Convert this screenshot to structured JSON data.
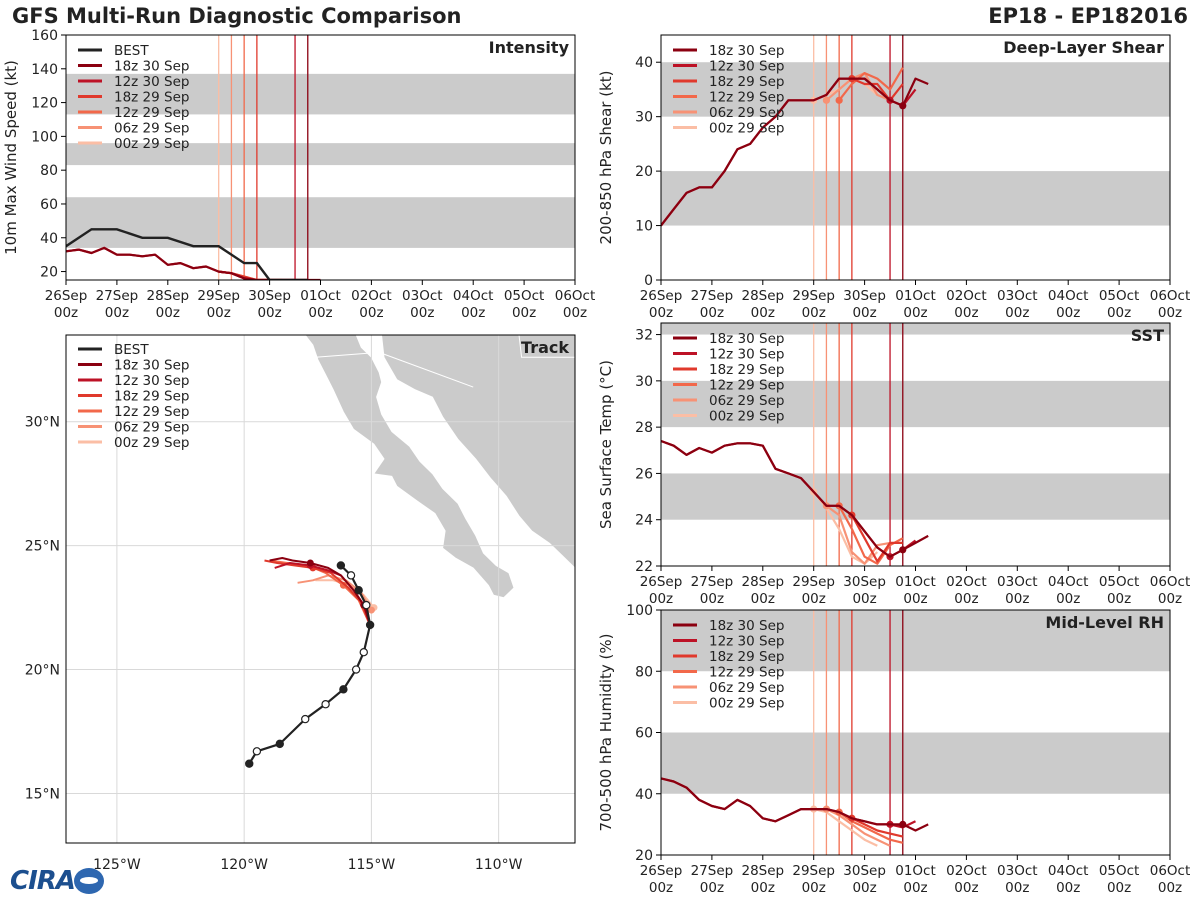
{
  "header": {
    "title": "GFS Multi-Run Diagnostic Comparison",
    "storm": "EP18 - EP182016"
  },
  "logo_text": "CIRA",
  "colors": {
    "best": "#222222",
    "runs": [
      "#8b0010",
      "#bd1226",
      "#e0392c",
      "#f2684a",
      "#f79275",
      "#fbbea5"
    ],
    "band": "#cbcbcb",
    "grid": "#d9d9d9"
  },
  "time_axis": {
    "range": [
      0,
      240
    ],
    "ticks": [
      {
        "t": 0,
        "top": "26Sep",
        "bot": "00z"
      },
      {
        "t": 24,
        "top": "27Sep",
        "bot": "00z"
      },
      {
        "t": 48,
        "top": "28Sep",
        "bot": "00z"
      },
      {
        "t": 72,
        "top": "29Sep",
        "bot": "00z"
      },
      {
        "t": 96,
        "top": "30Sep",
        "bot": "00z"
      },
      {
        "t": 120,
        "top": "01Oct",
        "bot": "00z"
      },
      {
        "t": 144,
        "top": "02Oct",
        "bot": "00z"
      },
      {
        "t": 168,
        "top": "03Oct",
        "bot": "00z"
      },
      {
        "t": 192,
        "top": "04Oct",
        "bot": "00z"
      },
      {
        "t": 216,
        "top": "05Oct",
        "bot": "00z"
      },
      {
        "t": 240,
        "top": "06Oct",
        "bot": "00z"
      }
    ]
  },
  "runs": [
    {
      "label": "18z 30 Sep",
      "t": 114
    },
    {
      "label": "12z 30 Sep",
      "t": 108
    },
    {
      "label": "18z 29 Sep",
      "t": 90
    },
    {
      "label": "12z 29 Sep",
      "t": 84
    },
    {
      "label": "06z 29 Sep",
      "t": 78
    },
    {
      "label": "00z 29 Sep",
      "t": 72
    }
  ],
  "best_label": "BEST",
  "chart_data": [
    {
      "id": "intensity",
      "type": "line",
      "title": "Intensity",
      "ylabel": "10m Max Wind Speed (kt)",
      "ylim": [
        15,
        160
      ],
      "yticks": [
        20,
        40,
        60,
        80,
        100,
        120,
        140,
        160
      ],
      "bands": [
        [
          34,
          64
        ],
        [
          83,
          96
        ],
        [
          113,
          137
        ]
      ],
      "legend_best": true,
      "best": {
        "t": [
          0,
          12,
          24,
          36,
          48,
          60,
          72,
          84,
          90,
          96,
          102,
          108,
          114
        ],
        "y": [
          35,
          45,
          45,
          40,
          40,
          35,
          35,
          25,
          25,
          15,
          15,
          15,
          15
        ]
      },
      "series": [
        {
          "t": [
            0,
            6,
            12,
            18,
            24,
            30,
            36,
            42,
            48,
            54,
            60,
            66,
            72,
            78,
            84,
            90,
            96,
            102,
            108,
            114,
            120
          ],
          "y": [
            32,
            33,
            31,
            34,
            30,
            30,
            29,
            30,
            24,
            25,
            22,
            23,
            20,
            19,
            16,
            15,
            15,
            15,
            15,
            15,
            15
          ]
        },
        {
          "t": [
            0,
            6,
            12,
            18,
            24,
            30,
            36,
            42,
            48,
            54,
            60,
            66,
            72,
            78,
            84,
            90,
            96,
            102,
            108,
            114
          ],
          "y": [
            32,
            33,
            31,
            34,
            30,
            30,
            29,
            30,
            24,
            25,
            22,
            23,
            20,
            19,
            16,
            15,
            15,
            15,
            15,
            15
          ]
        },
        {
          "t": [
            72,
            78,
            84,
            90,
            96,
            102,
            108
          ],
          "y": [
            20,
            19,
            17,
            15,
            15,
            15,
            15
          ]
        },
        {
          "t": [
            72,
            78,
            84,
            90,
            96,
            102
          ],
          "y": [
            20,
            19,
            16,
            15,
            15,
            15
          ]
        },
        {
          "t": [
            72,
            78,
            84,
            90,
            96
          ],
          "y": [
            20,
            19,
            17,
            15,
            15
          ]
        },
        {
          "t": [
            72,
            78,
            84,
            90,
            96
          ],
          "y": [
            20,
            19,
            17,
            15,
            15
          ]
        }
      ]
    },
    {
      "id": "shear",
      "type": "line",
      "title": "Deep-Layer Shear",
      "ylabel": "200-850 hPa Shear (kt)",
      "ylim": [
        0,
        45
      ],
      "yticks": [
        0,
        10,
        20,
        30,
        40
      ],
      "bands": [
        [
          10,
          20
        ],
        [
          30,
          40
        ]
      ],
      "legend_best": false,
      "series": [
        {
          "t": [
            0,
            6,
            12,
            18,
            24,
            30,
            36,
            42,
            48,
            54,
            60,
            66,
            72,
            78,
            84,
            90,
            96,
            102,
            108,
            114,
            120,
            126,
            132
          ],
          "y": [
            10,
            13,
            16,
            17,
            17,
            20,
            24,
            25,
            28,
            30,
            33,
            33,
            33,
            34,
            37,
            37,
            37,
            35,
            33,
            32,
            37,
            36,
            null
          ]
        },
        {
          "t": [
            0,
            6,
            12,
            18,
            24,
            30,
            36,
            42,
            48,
            54,
            60,
            66,
            72,
            78,
            84,
            90,
            96,
            102,
            108,
            114,
            120,
            126
          ],
          "y": [
            10,
            13,
            16,
            17,
            17,
            20,
            24,
            25,
            28,
            30,
            33,
            33,
            33,
            34,
            37,
            37,
            37,
            35,
            33,
            32,
            35,
            null
          ]
        },
        {
          "t": [
            90,
            96,
            102,
            108,
            114
          ],
          "y": [
            37,
            36,
            36,
            33,
            36
          ]
        },
        {
          "t": [
            84,
            90,
            96,
            102,
            108,
            114
          ],
          "y": [
            33,
            36,
            38,
            37,
            35,
            39
          ]
        },
        {
          "t": [
            78,
            84,
            90,
            96,
            102,
            108
          ],
          "y": [
            33,
            35,
            37,
            38,
            34,
            33
          ]
        },
        {
          "t": [
            72,
            78,
            84,
            90,
            96,
            102
          ],
          "y": [
            33,
            34,
            35,
            37,
            36,
            34
          ]
        }
      ]
    },
    {
      "id": "sst",
      "type": "line",
      "title": "SST",
      "ylabel": "Sea Surface Temp (°C)",
      "ylim": [
        22,
        32.5
      ],
      "yticks": [
        22,
        24,
        26,
        28,
        30,
        32
      ],
      "bands": [
        [
          24,
          26
        ],
        [
          28,
          30
        ],
        [
          32,
          34
        ]
      ],
      "legend_best": false,
      "series": [
        {
          "t": [
            0,
            6,
            12,
            18,
            24,
            30,
            36,
            42,
            48,
            54,
            60,
            66,
            72,
            78,
            84,
            90,
            96,
            102,
            108,
            114,
            120,
            126,
            132
          ],
          "y": [
            27.4,
            27.2,
            26.8,
            27.1,
            26.9,
            27.2,
            27.3,
            27.3,
            27.2,
            26.2,
            26.0,
            25.8,
            25.2,
            24.6,
            24.6,
            24.2,
            23.5,
            22.8,
            22.4,
            22.7,
            23.0,
            23.3,
            null
          ]
        },
        {
          "t": [
            0,
            6,
            12,
            18,
            24,
            30,
            36,
            42,
            48,
            54,
            60,
            66,
            72,
            78,
            84,
            90,
            96,
            102,
            108,
            114,
            120,
            126
          ],
          "y": [
            27.4,
            27.2,
            26.8,
            27.1,
            26.9,
            27.2,
            27.3,
            27.3,
            27.2,
            26.2,
            26.0,
            25.8,
            25.2,
            24.6,
            24.6,
            24.2,
            23.5,
            22.8,
            22.4,
            22.7,
            23.1,
            null
          ]
        },
        {
          "t": [
            90,
            96,
            102,
            108,
            114
          ],
          "y": [
            24.2,
            23.2,
            22.2,
            23.0,
            23.0
          ]
        },
        {
          "t": [
            84,
            90,
            96,
            102,
            108,
            114
          ],
          "y": [
            24.6,
            23.6,
            22.4,
            22.1,
            22.9,
            23.2
          ]
        },
        {
          "t": [
            78,
            84,
            90,
            96,
            102,
            108
          ],
          "y": [
            24.6,
            24.2,
            22.6,
            22.1,
            22.9,
            23.0
          ]
        },
        {
          "t": [
            72,
            78,
            84,
            90,
            96,
            102
          ],
          "y": [
            25.2,
            24.5,
            23.6,
            22.4,
            22.1,
            22.6
          ]
        }
      ]
    },
    {
      "id": "rh",
      "type": "line",
      "title": "Mid-Level RH",
      "ylabel": "700-500 hPa Humidity (%)",
      "ylim": [
        20,
        100
      ],
      "yticks": [
        20,
        40,
        60,
        80,
        100
      ],
      "bands": [
        [
          40,
          60
        ],
        [
          80,
          100
        ]
      ],
      "legend_best": false,
      "series": [
        {
          "t": [
            0,
            6,
            12,
            18,
            24,
            30,
            36,
            42,
            48,
            54,
            60,
            66,
            72,
            78,
            84,
            90,
            96,
            102,
            108,
            114,
            120,
            126,
            132
          ],
          "y": [
            45,
            44,
            42,
            38,
            36,
            35,
            38,
            36,
            32,
            31,
            33,
            35,
            35,
            35,
            34,
            32,
            31,
            30,
            30,
            30,
            28,
            30,
            null
          ]
        },
        {
          "t": [
            0,
            6,
            12,
            18,
            24,
            30,
            36,
            42,
            48,
            54,
            60,
            66,
            72,
            78,
            84,
            90,
            96,
            102,
            108,
            114,
            120,
            126
          ],
          "y": [
            45,
            44,
            42,
            38,
            36,
            35,
            38,
            36,
            32,
            31,
            33,
            35,
            35,
            35,
            34,
            32,
            31,
            30,
            30,
            29,
            31,
            null
          ]
        },
        {
          "t": [
            90,
            96,
            102,
            108,
            114
          ],
          "y": [
            32,
            30,
            28,
            27,
            26
          ]
        },
        {
          "t": [
            84,
            90,
            96,
            102,
            108,
            114
          ],
          "y": [
            34,
            31,
            29,
            27,
            25,
            24
          ]
        },
        {
          "t": [
            78,
            84,
            90,
            96,
            102,
            108
          ],
          "y": [
            35,
            33,
            30,
            27,
            25,
            23
          ]
        },
        {
          "t": [
            72,
            78,
            84,
            90,
            96,
            102
          ],
          "y": [
            35,
            34,
            31,
            28,
            25,
            23
          ]
        }
      ]
    },
    {
      "id": "track",
      "type": "map",
      "title": "Track",
      "xlim": [
        -127,
        -107
      ],
      "ylim": [
        13,
        33.5
      ],
      "lon_ticks": [
        {
          "v": -125,
          "label": "125°W"
        },
        {
          "v": -120,
          "label": "120°W"
        },
        {
          "v": -115,
          "label": "115°W"
        },
        {
          "v": -110,
          "label": "110°W"
        }
      ],
      "lat_ticks": [
        {
          "v": 15,
          "label": "15°N"
        },
        {
          "v": 20,
          "label": "20°N"
        },
        {
          "v": 25,
          "label": "25°N"
        },
        {
          "v": 30,
          "label": "30°N"
        }
      ],
      "best_track": {
        "lon": [
          -119.8,
          -119.5,
          -118.6,
          -117.6,
          -116.8,
          -116.1,
          -115.6,
          -115.3,
          -115.05,
          -115.2,
          -115.5,
          -115.8,
          -116.2
        ],
        "lat": [
          16.2,
          16.7,
          17.0,
          18.0,
          18.6,
          19.2,
          20.0,
          20.7,
          21.8,
          22.6,
          23.2,
          23.8,
          24.2
        ],
        "filled": [
          true,
          false,
          true,
          false,
          false,
          true,
          false,
          false,
          true,
          false,
          true,
          false,
          true
        ]
      },
      "tracks": [
        {
          "lon": [
            -115.05,
            -115.3,
            -115.7,
            -116.2,
            -116.7,
            -117.4,
            -118.1,
            -118.5,
            -119.0
          ],
          "lat": [
            21.8,
            22.6,
            23.2,
            23.8,
            24.1,
            24.3,
            24.4,
            24.5,
            24.4
          ],
          "dots": [
            1,
            5
          ]
        },
        {
          "lon": [
            -115.05,
            -115.3,
            -115.7,
            -116.2,
            -116.7,
            -117.4,
            -118.2,
            -118.8
          ],
          "lat": [
            21.8,
            22.6,
            23.2,
            23.8,
            24.0,
            24.2,
            24.3,
            24.1
          ],
          "dots": [
            5
          ]
        },
        {
          "lon": [
            -115.1,
            -115.4,
            -115.9,
            -116.6,
            -117.3,
            -118.0,
            -118.7,
            -119.2
          ],
          "lat": [
            21.9,
            22.7,
            23.3,
            23.9,
            24.1,
            24.2,
            24.3,
            24.4
          ],
          "dots": [
            4
          ]
        },
        {
          "lon": [
            -115.1,
            -115.5,
            -116.1,
            -116.8,
            -117.5,
            -118.3,
            -119.0
          ],
          "lat": [
            21.9,
            22.8,
            23.4,
            23.9,
            24.2,
            24.3,
            24.4
          ],
          "dots": [
            2
          ]
        },
        {
          "lon": [
            -115.0,
            -115.4,
            -116.0,
            -116.7,
            -117.3,
            -117.9
          ],
          "lat": [
            22.4,
            23.1,
            23.6,
            23.8,
            23.6,
            23.5
          ],
          "dots": [
            0
          ]
        },
        {
          "lon": [
            -114.9,
            -115.3,
            -115.8,
            -116.5,
            -117.2
          ],
          "lat": [
            22.5,
            23.0,
            23.4,
            23.6,
            23.6
          ],
          "dots": [
            0
          ]
        }
      ]
    }
  ]
}
